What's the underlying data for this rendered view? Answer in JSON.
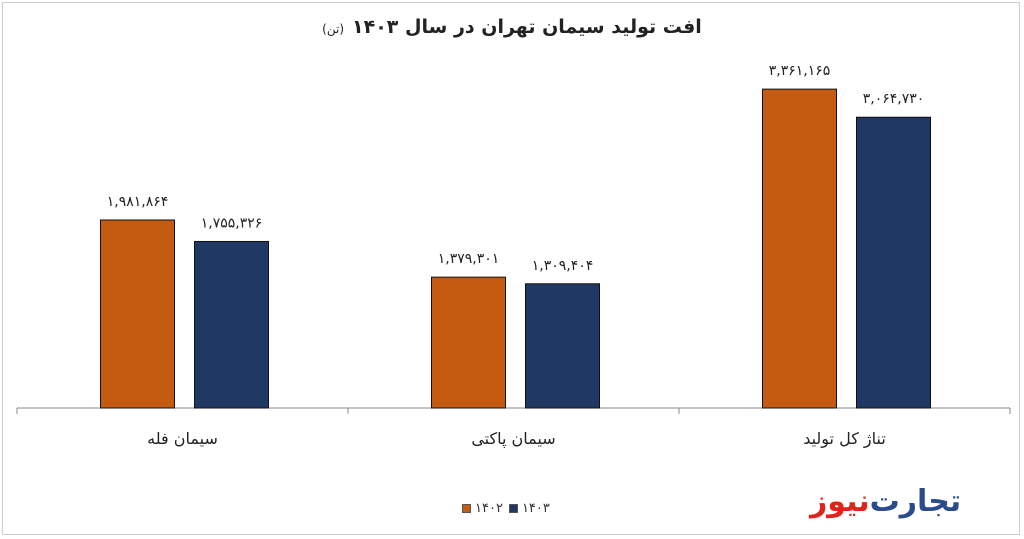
{
  "chart_data": {
    "type": "bar",
    "title": "افت تولید سیمان تهران در سال ۱۴۰۳",
    "unit": "(تن)",
    "categories": [
      "سیمان فله",
      "سیمان پاکتی",
      "تناژ کل تولید"
    ],
    "series": [
      {
        "name": "۱۴۰۲",
        "color": "#C55A11",
        "values": [
          1981864,
          1379301,
          3361165
        ],
        "labels": [
          "۱,۹۸۱,۸۶۴",
          "۱,۳۷۹,۳۰۱",
          "۳,۳۶۱,۱۶۵"
        ]
      },
      {
        "name": "۱۴۰۳",
        "color": "#203864",
        "values": [
          1755326,
          1309404,
          3064730
        ],
        "labels": [
          "۱,۷۵۵,۳۲۶",
          "۱,۳۰۹,۴۰۴",
          "۳,۰۶۴,۷۳۰"
        ]
      }
    ],
    "ylim": [
      0,
      3900000
    ],
    "grid": false,
    "legend": "bottom-center"
  },
  "brand": {
    "part1": "تجارت",
    "part2": "نیوز",
    "color1": "#2B4C8C",
    "color2": "#E2231A"
  }
}
